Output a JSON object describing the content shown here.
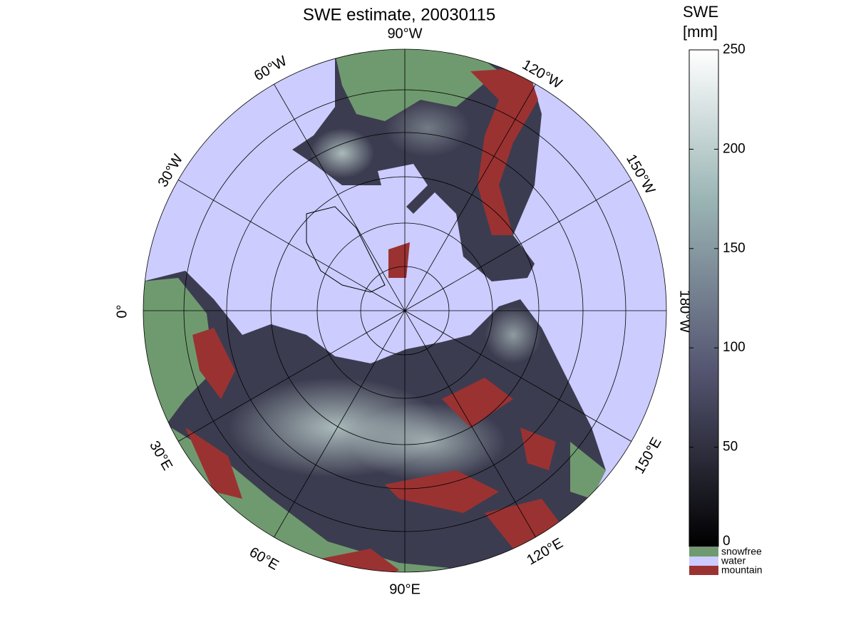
{
  "title": "SWE estimate, 20030115",
  "longitude_labels": [
    "90°W",
    "60°W",
    "30°W",
    "0°",
    "30°E",
    "60°E",
    "90°E",
    "120°E",
    "150°E",
    "180°W",
    "150°W",
    "120°W"
  ],
  "colorbar": {
    "label": [
      "SWE",
      "[mm]"
    ],
    "lim": [
      0,
      250
    ],
    "ticks": [
      0,
      50,
      100,
      150,
      200,
      250
    ],
    "classes": [
      {
        "name": "snowfree",
        "color": "#6f9a6f"
      },
      {
        "name": "water",
        "color": "#ccccff"
      },
      {
        "name": "mountain",
        "color": "#9b3232"
      }
    ]
  }
}
